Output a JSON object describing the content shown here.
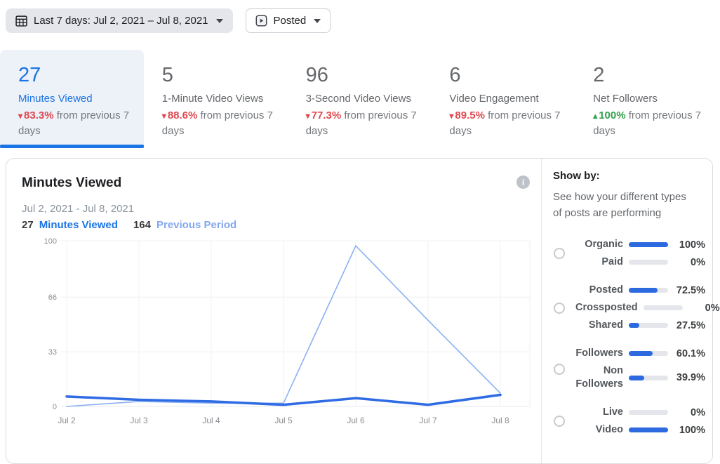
{
  "toolbar": {
    "date_range": {
      "icon": "calendar-icon",
      "label": "Last 7 days: Jul 2, 2021 – Jul 8, 2021"
    },
    "posted_filter": {
      "icon": "video-posted-icon",
      "label": "Posted"
    }
  },
  "metric_cards": [
    {
      "value": "27",
      "label": "Minutes Viewed",
      "arrow": "▾",
      "direction": "down",
      "change": "83.3%",
      "suffix": " from previous 7 days",
      "selected": true
    },
    {
      "value": "5",
      "label": "1-Minute Video Views",
      "arrow": "▾",
      "direction": "down",
      "change": "88.6%",
      "suffix": " from previous 7 days",
      "selected": false
    },
    {
      "value": "96",
      "label": "3-Second Video Views",
      "arrow": "▾",
      "direction": "down",
      "change": "77.3%",
      "suffix": " from previous 7 days",
      "selected": false
    },
    {
      "value": "6",
      "label": "Video Engagement",
      "arrow": "▾",
      "direction": "down",
      "change": "89.5%",
      "suffix": " from previous 7 days",
      "selected": false
    },
    {
      "value": "2",
      "label": "Net Followers",
      "arrow": "▴",
      "direction": "up",
      "change": "100%",
      "suffix": " from previous 7 days",
      "selected": false
    }
  ],
  "panel": {
    "title": "Minutes Viewed",
    "info_icon": "info-icon",
    "subtitle": "Jul 2, 2021 - Jul 8, 2021",
    "legend": {
      "current_value": "27",
      "current_label": "Minutes Viewed",
      "previous_value": "164",
      "previous_label": "Previous Period"
    }
  },
  "chart_data": {
    "type": "line",
    "title": "Minutes Viewed",
    "x": [
      "Jul 2",
      "Jul 3",
      "Jul 4",
      "Jul 5",
      "Jul 6",
      "Jul 7",
      "Jul 8"
    ],
    "series": [
      {
        "name": "Minutes Viewed",
        "values": [
          6,
          4,
          3,
          1,
          5,
          1,
          7
        ],
        "color": "#2e6be4",
        "width": 3.5
      },
      {
        "name": "Previous Period",
        "values": [
          0,
          3,
          2,
          2,
          97,
          52,
          8
        ],
        "color": "#8ab1f2",
        "width": 1.6
      }
    ],
    "ylim": [
      0,
      100
    ],
    "yticks": [
      0,
      33,
      66,
      100
    ],
    "grid": true,
    "legend_position": "top-left"
  },
  "show_by": {
    "title": "Show by:",
    "description": "See how your different types of posts are performing",
    "groups": [
      {
        "rows": [
          {
            "label": "Organic",
            "value": 100,
            "pct": "100%"
          },
          {
            "label": "Paid",
            "value": 0,
            "pct": "0%"
          }
        ]
      },
      {
        "rows": [
          {
            "label": "Posted",
            "value": 72.5,
            "pct": "72.5%"
          },
          {
            "label": "Crossposted",
            "value": 0,
            "pct": "0%"
          },
          {
            "label": "Shared",
            "value": 27.5,
            "pct": "27.5%"
          }
        ]
      },
      {
        "rows": [
          {
            "label": "Followers",
            "value": 60.1,
            "pct": "60.1%"
          },
          {
            "label": "Non Followers",
            "value": 39.9,
            "pct": "39.9%"
          }
        ]
      },
      {
        "rows": [
          {
            "label": "Live",
            "value": 0,
            "pct": "0%"
          },
          {
            "label": "Video",
            "value": 100,
            "pct": "100%"
          }
        ]
      }
    ]
  },
  "colors": {
    "accent_blue": "#1b74e4",
    "bar_blue": "#2d6ae0",
    "previous_line_blue": "#8ab1f2",
    "negative_red": "#e0484f",
    "positive_green": "#31a24c",
    "selected_card_bg": "#edf1f8"
  }
}
